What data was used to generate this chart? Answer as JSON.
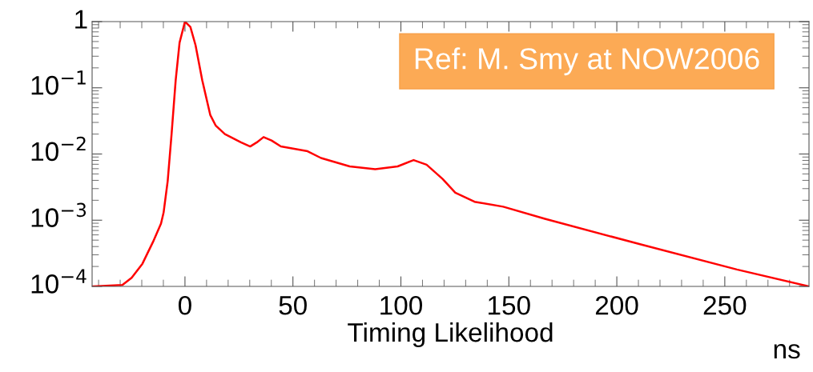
{
  "chart_data": {
    "type": "line",
    "xlabel": "Timing Likelihood",
    "log": "y",
    "x": [
      -42.6,
      -29,
      -24.7,
      -19.7,
      -14.8,
      -11.1,
      -9.9,
      -8,
      -6.2,
      -4.3,
      -2.5,
      0,
      2.5,
      4.9,
      8,
      11.7,
      14.2,
      18.5,
      25.9,
      30.2,
      33.3,
      36.4,
      40.1,
      44.4,
      50.6,
      56.8,
      63,
      76.3,
      88.1,
      98.5,
      105.9,
      111.9,
      119.3,
      125.2,
      134.1,
      147.4,
      166.7,
      211.1,
      255.6,
      289
    ],
    "series": [
      {
        "color": "#ff0000",
        "values": [
          0.0001,
          0.000105,
          0.000135,
          0.00022,
          0.00047,
          0.00089,
          0.0013,
          0.0039,
          0.02,
          0.13,
          0.48,
          1,
          0.83,
          0.44,
          0.13,
          0.039,
          0.027,
          0.02,
          0.015,
          0.013,
          0.015,
          0.018,
          0.016,
          0.013,
          0.012,
          0.011,
          0.0087,
          0.0065,
          0.0059,
          0.0065,
          0.0081,
          0.0069,
          0.0042,
          0.0026,
          0.0019,
          0.0016,
          0.00105,
          0.00043,
          0.00018,
          0.0001
        ]
      }
    ],
    "xlim": [
      -43,
      289
    ],
    "ylim": [
      0.0001,
      1
    ],
    "xticks": [
      0,
      50,
      100,
      150,
      200,
      250
    ],
    "yticks": [
      {
        "value": 1,
        "label": "1"
      },
      {
        "value": 0.1,
        "label": "10$^{−1}$"
      },
      {
        "value": 0.01,
        "label": "10$^{−2}$"
      },
      {
        "value": 0.001,
        "label": "10$^{−3}$"
      },
      {
        "value": 0.0001,
        "label": "10$^{−4}$"
      }
    ],
    "grid": false,
    "legend": false,
    "marker": "none",
    "line_style": "solid",
    "annotations": [
      "Ref: M. Smy at NOW2006",
      "ns"
    ]
  }
}
